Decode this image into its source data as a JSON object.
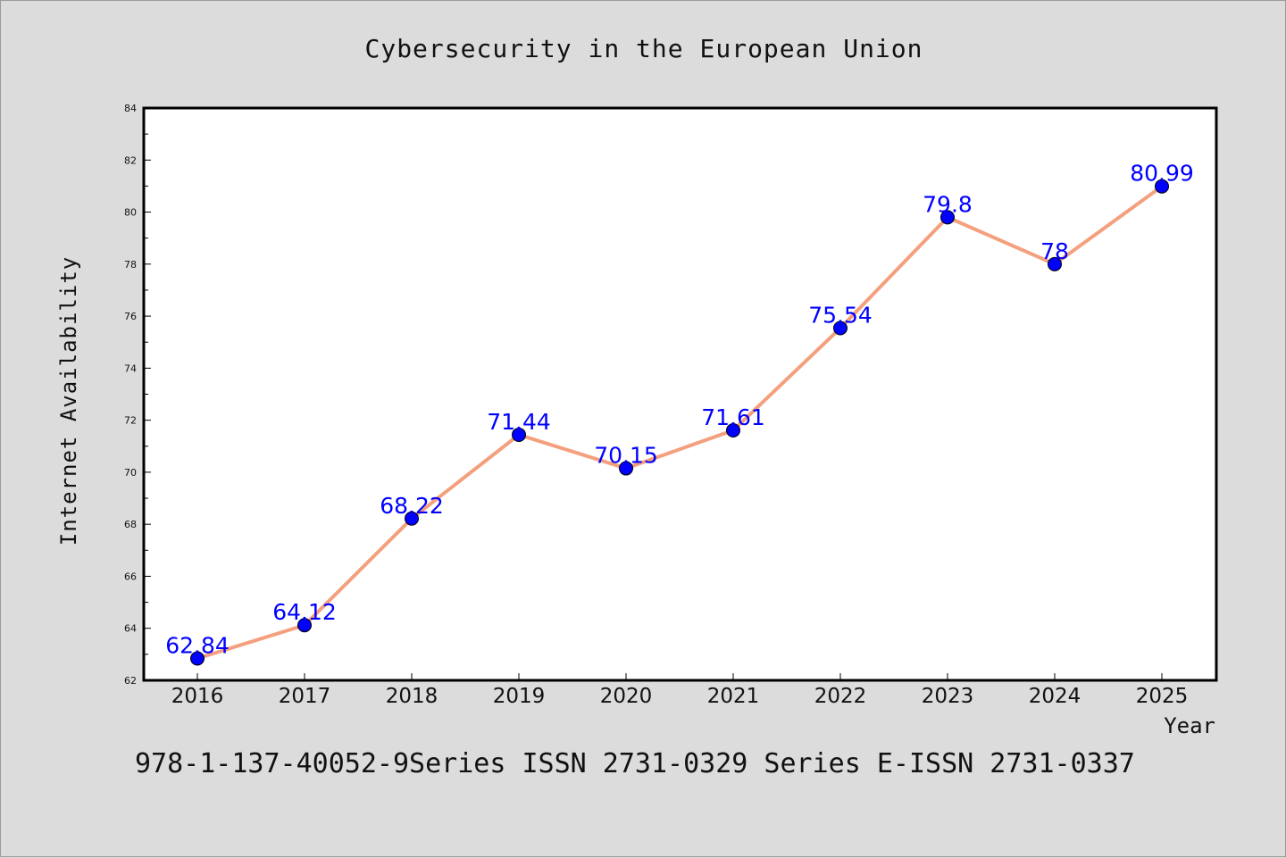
{
  "chart_data": {
    "type": "line",
    "title": "Cybersecurity in the European Union",
    "xlabel": "Year",
    "ylabel": "Internet Availability",
    "categories": [
      "2016",
      "2017",
      "2018",
      "2019",
      "2020",
      "2021",
      "2022",
      "2023",
      "2024",
      "2025"
    ],
    "series": [
      {
        "values": [
          62.84,
          64.12,
          68.22,
          71.44,
          70.15,
          71.61,
          75.54,
          79.8,
          78,
          80.99
        ],
        "data_labels": [
          "62.84",
          "64.12",
          "68.22",
          "71.44",
          "70.15",
          "71.61",
          "75.54",
          "79.8",
          "78",
          "80.99"
        ],
        "line_color": "#f4a07e",
        "marker_color": "#0000ff"
      }
    ],
    "ylim": [
      62,
      84
    ],
    "yticks": [
      "62",
      "64",
      "66",
      "68",
      "70",
      "72",
      "74",
      "76",
      "78",
      "80",
      "82",
      "84"
    ],
    "grid": false,
    "legend": "none"
  },
  "footer": "978-1-137-40052-9Series ISSN 2731-0329 Series E-ISSN 2731-0337",
  "colors": {
    "background": "#dcdcdc",
    "plot_area": "#ffffff",
    "line": "#f4a07e",
    "marker": "#0000ff",
    "data_label": "#0000ff"
  }
}
